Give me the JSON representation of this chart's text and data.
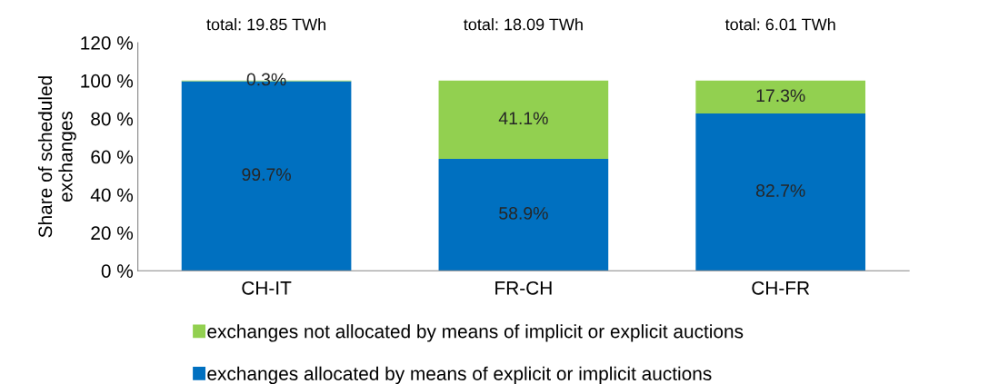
{
  "chart_data": {
    "type": "bar",
    "stacked": true,
    "ylabel": "Share of scheduled\nexchanges",
    "categories": [
      "CH-IT",
      "FR-CH",
      "CH-FR"
    ],
    "series": [
      {
        "name": "exchanges allocated by means of explicit or implicit auctions",
        "color": "#0070c0",
        "values": [
          99.7,
          58.9,
          82.7
        ],
        "value_labels": [
          "99.7%",
          "58.9%",
          "82.7%"
        ]
      },
      {
        "name": "exchanges not allocated by means of implicit or explicit auctions",
        "color": "#92d050",
        "values": [
          0.3,
          41.1,
          17.3
        ],
        "value_labels": [
          "0.3%",
          "41.1%",
          "17.3%"
        ]
      }
    ],
    "annotations": [
      "total: 19.85 TWh",
      "total: 18.09 TWh",
      "total: 6.01 TWh"
    ],
    "ylim": [
      0,
      120
    ],
    "yticks": [
      {
        "value": 0,
        "label": "0 %"
      },
      {
        "value": 20,
        "label": "20 %"
      },
      {
        "value": 40,
        "label": "40 %"
      },
      {
        "value": 60,
        "label": "60 %"
      },
      {
        "value": 80,
        "label": "80 %"
      },
      {
        "value": 100,
        "label": "100 %"
      },
      {
        "value": 120,
        "label": "120 %"
      }
    ],
    "grid": false,
    "legend": "bottom"
  }
}
